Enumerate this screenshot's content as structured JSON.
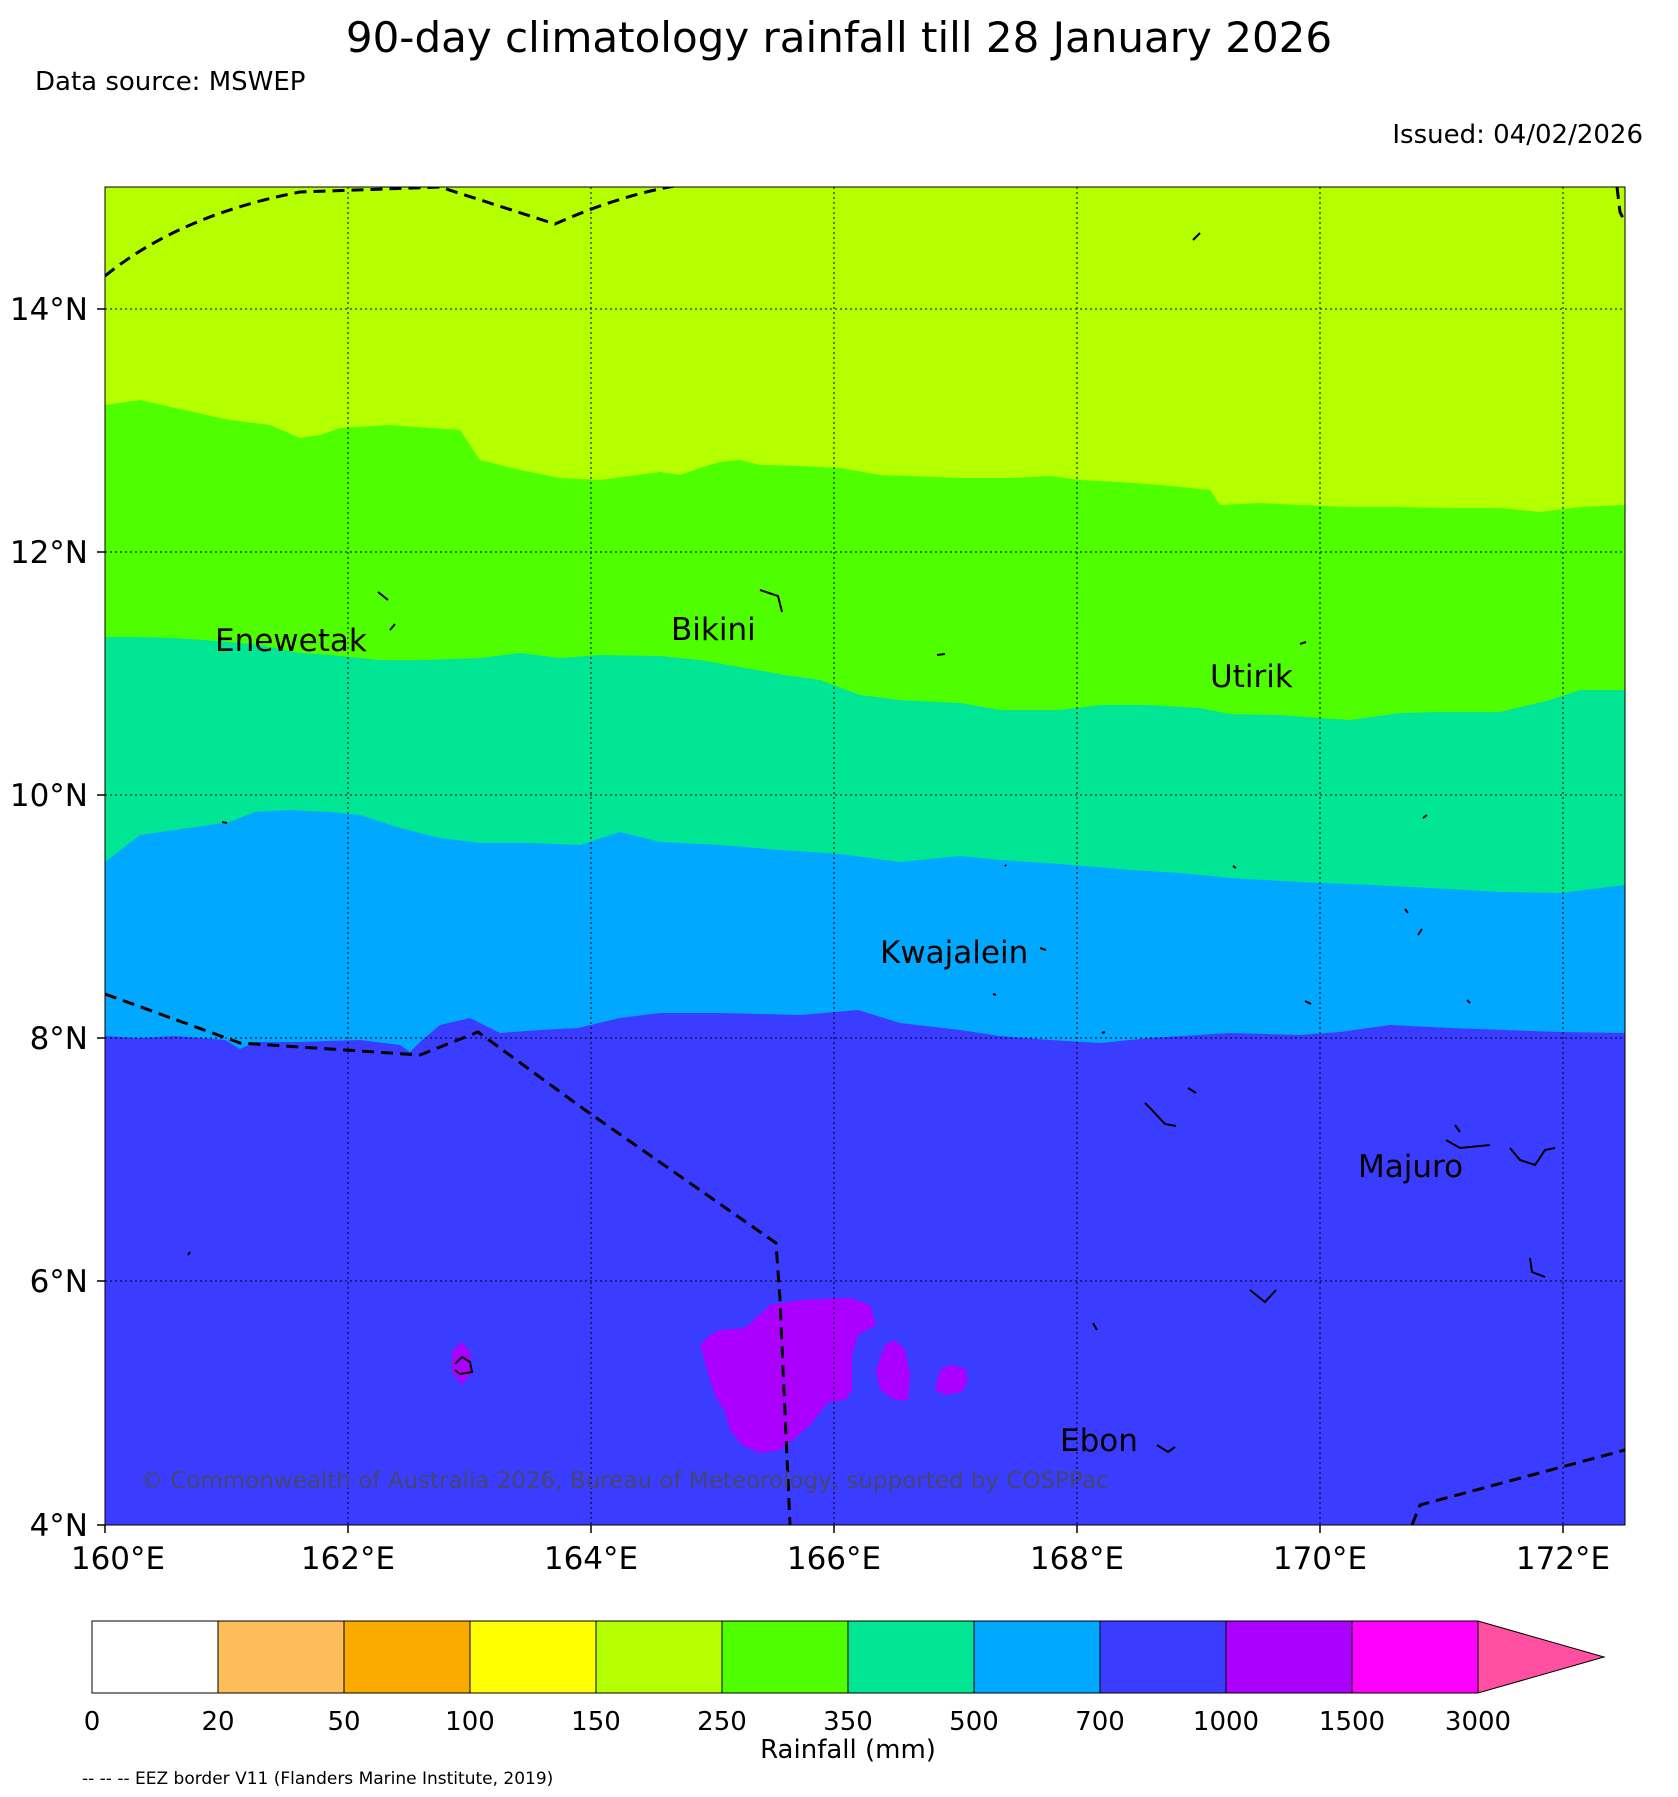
{
  "title": "90-day climatology rainfall till 28 January 2026",
  "source": "Data source: MSWEP",
  "issued": "Issued: 04/02/2026",
  "copyright": "© Commonwealth of Australia 2026, Bureau of Meteorology, supported by COSPPac",
  "eez_note": "-- -- -- EEZ border V11 (Flanders Marine Institute, 2019)",
  "map": {
    "lon_labels": [
      "160°E",
      "162°E",
      "164°E",
      "166°E",
      "168°E",
      "170°E",
      "172°E"
    ],
    "lat_labels": [
      "14°N",
      "12°N",
      "10°N",
      "8°N",
      "6°N",
      "4°N"
    ],
    "places": [
      "Enewetak",
      "Bikini",
      "Utirik",
      "Kwajalein",
      "Majuro",
      "Ebon"
    ]
  },
  "colorbar": {
    "label": "Rainfall (mm)",
    "ticks": [
      "0",
      "20",
      "50",
      "100",
      "150",
      "250",
      "350",
      "500",
      "700",
      "1000",
      "1500",
      "3000"
    ],
    "colors": [
      "#ffffff",
      "#fdbd5a",
      "#fbab00",
      "#ffff00",
      "#b4ff00",
      "#4fff00",
      "#00e695",
      "#00a8ff",
      "#3a3dff",
      "#ac00ff",
      "#ff00ff",
      "#ff4fa1"
    ]
  }
}
